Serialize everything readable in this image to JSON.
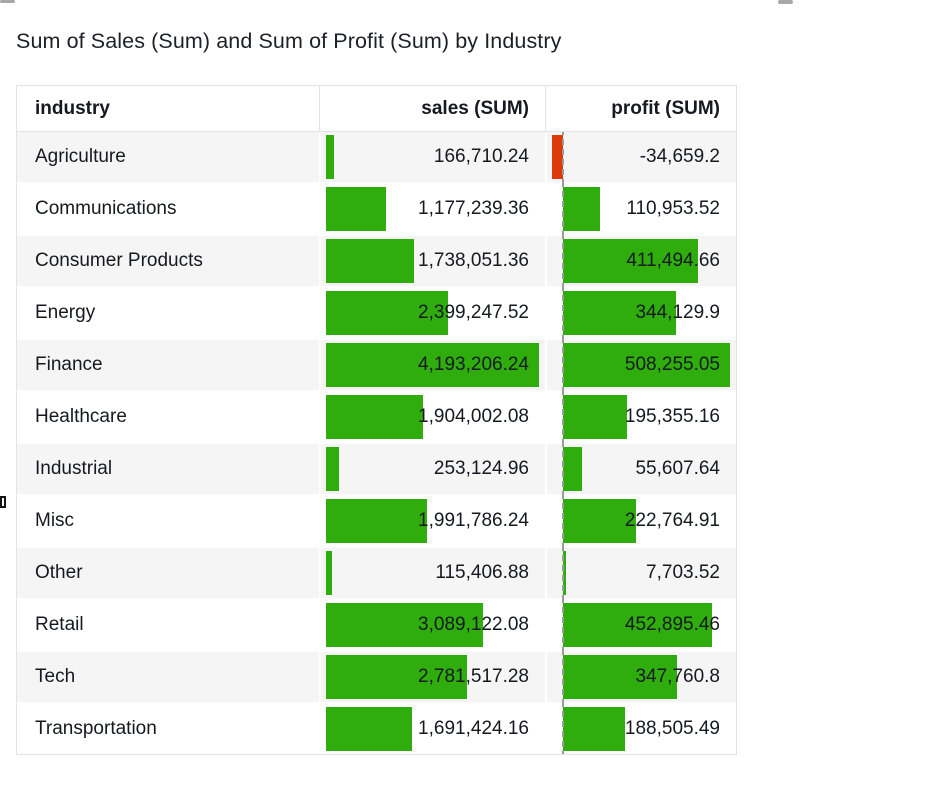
{
  "page": {
    "title": "Sum of Sales (Sum) and Sum of Profit (Sum) by Industry"
  },
  "decorations": {
    "top_left_icon": "scrollbar-thumb-fragment",
    "top_right_icon": "scrollbar-thumb-fragment",
    "left_edge_icon": "partial-checkbox"
  },
  "table": {
    "columns": [
      {
        "key": "industry",
        "label": "industry",
        "align": "left"
      },
      {
        "key": "sales",
        "label": "sales (SUM)",
        "align": "right"
      },
      {
        "key": "profit",
        "label": "profit (SUM)",
        "align": "right"
      }
    ],
    "sales_max": 4193206.24,
    "profit_min": -34659.2,
    "profit_max": 508255.05,
    "bar_colors": {
      "positive": "#2FAD0D",
      "negative": "#DC3A0B"
    },
    "zero_line_color": "#9b9b9b",
    "row_alt_color": "#f5f5f5",
    "border_color": "#e3e3e3",
    "rows": [
      {
        "industry": "Agriculture",
        "sales": 166710.24,
        "sales_label": "166,710.24",
        "profit": -34659.2,
        "profit_label": "-34,659.2"
      },
      {
        "industry": "Communications",
        "sales": 1177239.36,
        "sales_label": "1,177,239.36",
        "profit": 110953.52,
        "profit_label": "110,953.52"
      },
      {
        "industry": "Consumer Products",
        "sales": 1738051.36,
        "sales_label": "1,738,051.36",
        "profit": 411494.66,
        "profit_label": "411,494.66"
      },
      {
        "industry": "Energy",
        "sales": 2399247.52,
        "sales_label": "2,399,247.52",
        "profit": 344129.9,
        "profit_label": "344,129.9"
      },
      {
        "industry": "Finance",
        "sales": 4193206.24,
        "sales_label": "4,193,206.24",
        "profit": 508255.05,
        "profit_label": "508,255.05"
      },
      {
        "industry": "Healthcare",
        "sales": 1904002.08,
        "sales_label": "1,904,002.08",
        "profit": 195355.16,
        "profit_label": "195,355.16"
      },
      {
        "industry": "Industrial",
        "sales": 253124.96,
        "sales_label": "253,124.96",
        "profit": 55607.64,
        "profit_label": "55,607.64"
      },
      {
        "industry": "Misc",
        "sales": 1991786.24,
        "sales_label": "1,991,786.24",
        "profit": 222764.91,
        "profit_label": "222,764.91"
      },
      {
        "industry": "Other",
        "sales": 115406.88,
        "sales_label": "115,406.88",
        "profit": 7703.52,
        "profit_label": "7,703.52"
      },
      {
        "industry": "Retail",
        "sales": 3089122.08,
        "sales_label": "3,089,122.08",
        "profit": 452895.46,
        "profit_label": "452,895.46"
      },
      {
        "industry": "Tech",
        "sales": 2781517.28,
        "sales_label": "2,781,517.28",
        "profit": 347760.8,
        "profit_label": "347,760.8"
      },
      {
        "industry": "Transportation",
        "sales": 1691424.16,
        "sales_label": "1,691,424.16",
        "profit": 188505.49,
        "profit_label": "188,505.49"
      }
    ]
  },
  "chart_data": {
    "type": "table",
    "title": "Sum of Sales (Sum) and Sum of Profit (Sum) by Industry",
    "columns": [
      "industry",
      "sales (SUM)",
      "profit (SUM)"
    ],
    "categories": [
      "Agriculture",
      "Communications",
      "Consumer Products",
      "Energy",
      "Finance",
      "Healthcare",
      "Industrial",
      "Misc",
      "Other",
      "Retail",
      "Tech",
      "Transportation"
    ],
    "series": [
      {
        "name": "sales (SUM)",
        "values": [
          166710.24,
          1177239.36,
          1738051.36,
          2399247.52,
          4193206.24,
          1904002.08,
          253124.96,
          1991786.24,
          115406.88,
          3089122.08,
          2781517.28,
          1691424.16
        ]
      },
      {
        "name": "profit (SUM)",
        "values": [
          -34659.2,
          110953.52,
          411494.66,
          344129.9,
          508255.05,
          195355.16,
          55607.64,
          222764.91,
          7703.52,
          452895.46,
          347760.8,
          188505.49
        ]
      }
    ],
    "style": "in-cell data bars; positive bars green (#2FAD0D), negative bars red (#DC3A0B); dashed gray zero baseline in profit column; bars scaled to column max"
  }
}
